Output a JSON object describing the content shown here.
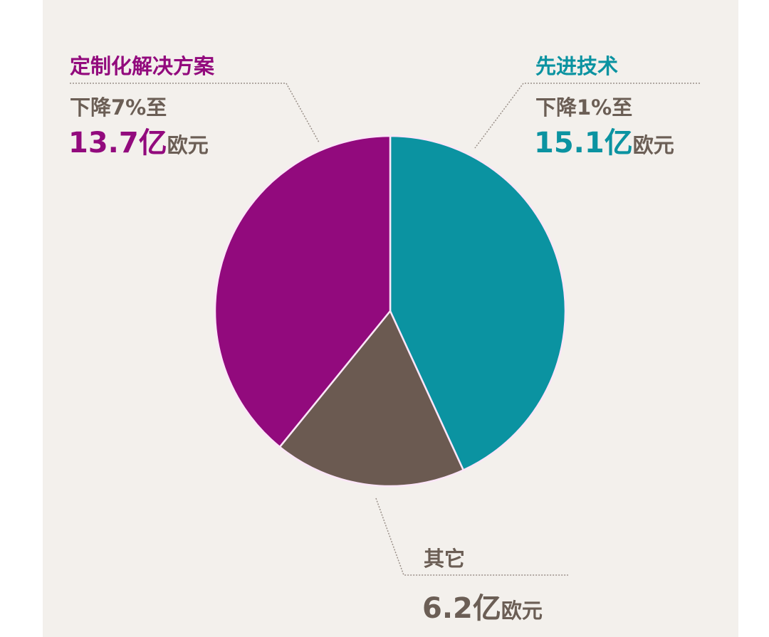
{
  "chart_data": {
    "type": "pie",
    "start": "top",
    "direction": "clockwise",
    "slices": [
      {
        "name": "先进技术",
        "change": "下降1%至",
        "value": 15.1,
        "value_label": "15.1",
        "unit_yi": "亿",
        "unit": "欧元",
        "color": "#0b93a1"
      },
      {
        "name": "其它",
        "change": "",
        "value": 6.2,
        "value_label": "6.2",
        "unit_yi": "亿",
        "unit": "欧元",
        "color": "#6b5a51"
      },
      {
        "name": "定制化解决方案",
        "change": "下降7%至",
        "value": 13.7,
        "value_label": "13.7",
        "unit_yi": "亿",
        "unit": "欧元",
        "color": "#920a7d"
      }
    ],
    "background": "#f3f0ec",
    "separator_color": "#fbe6f8"
  }
}
